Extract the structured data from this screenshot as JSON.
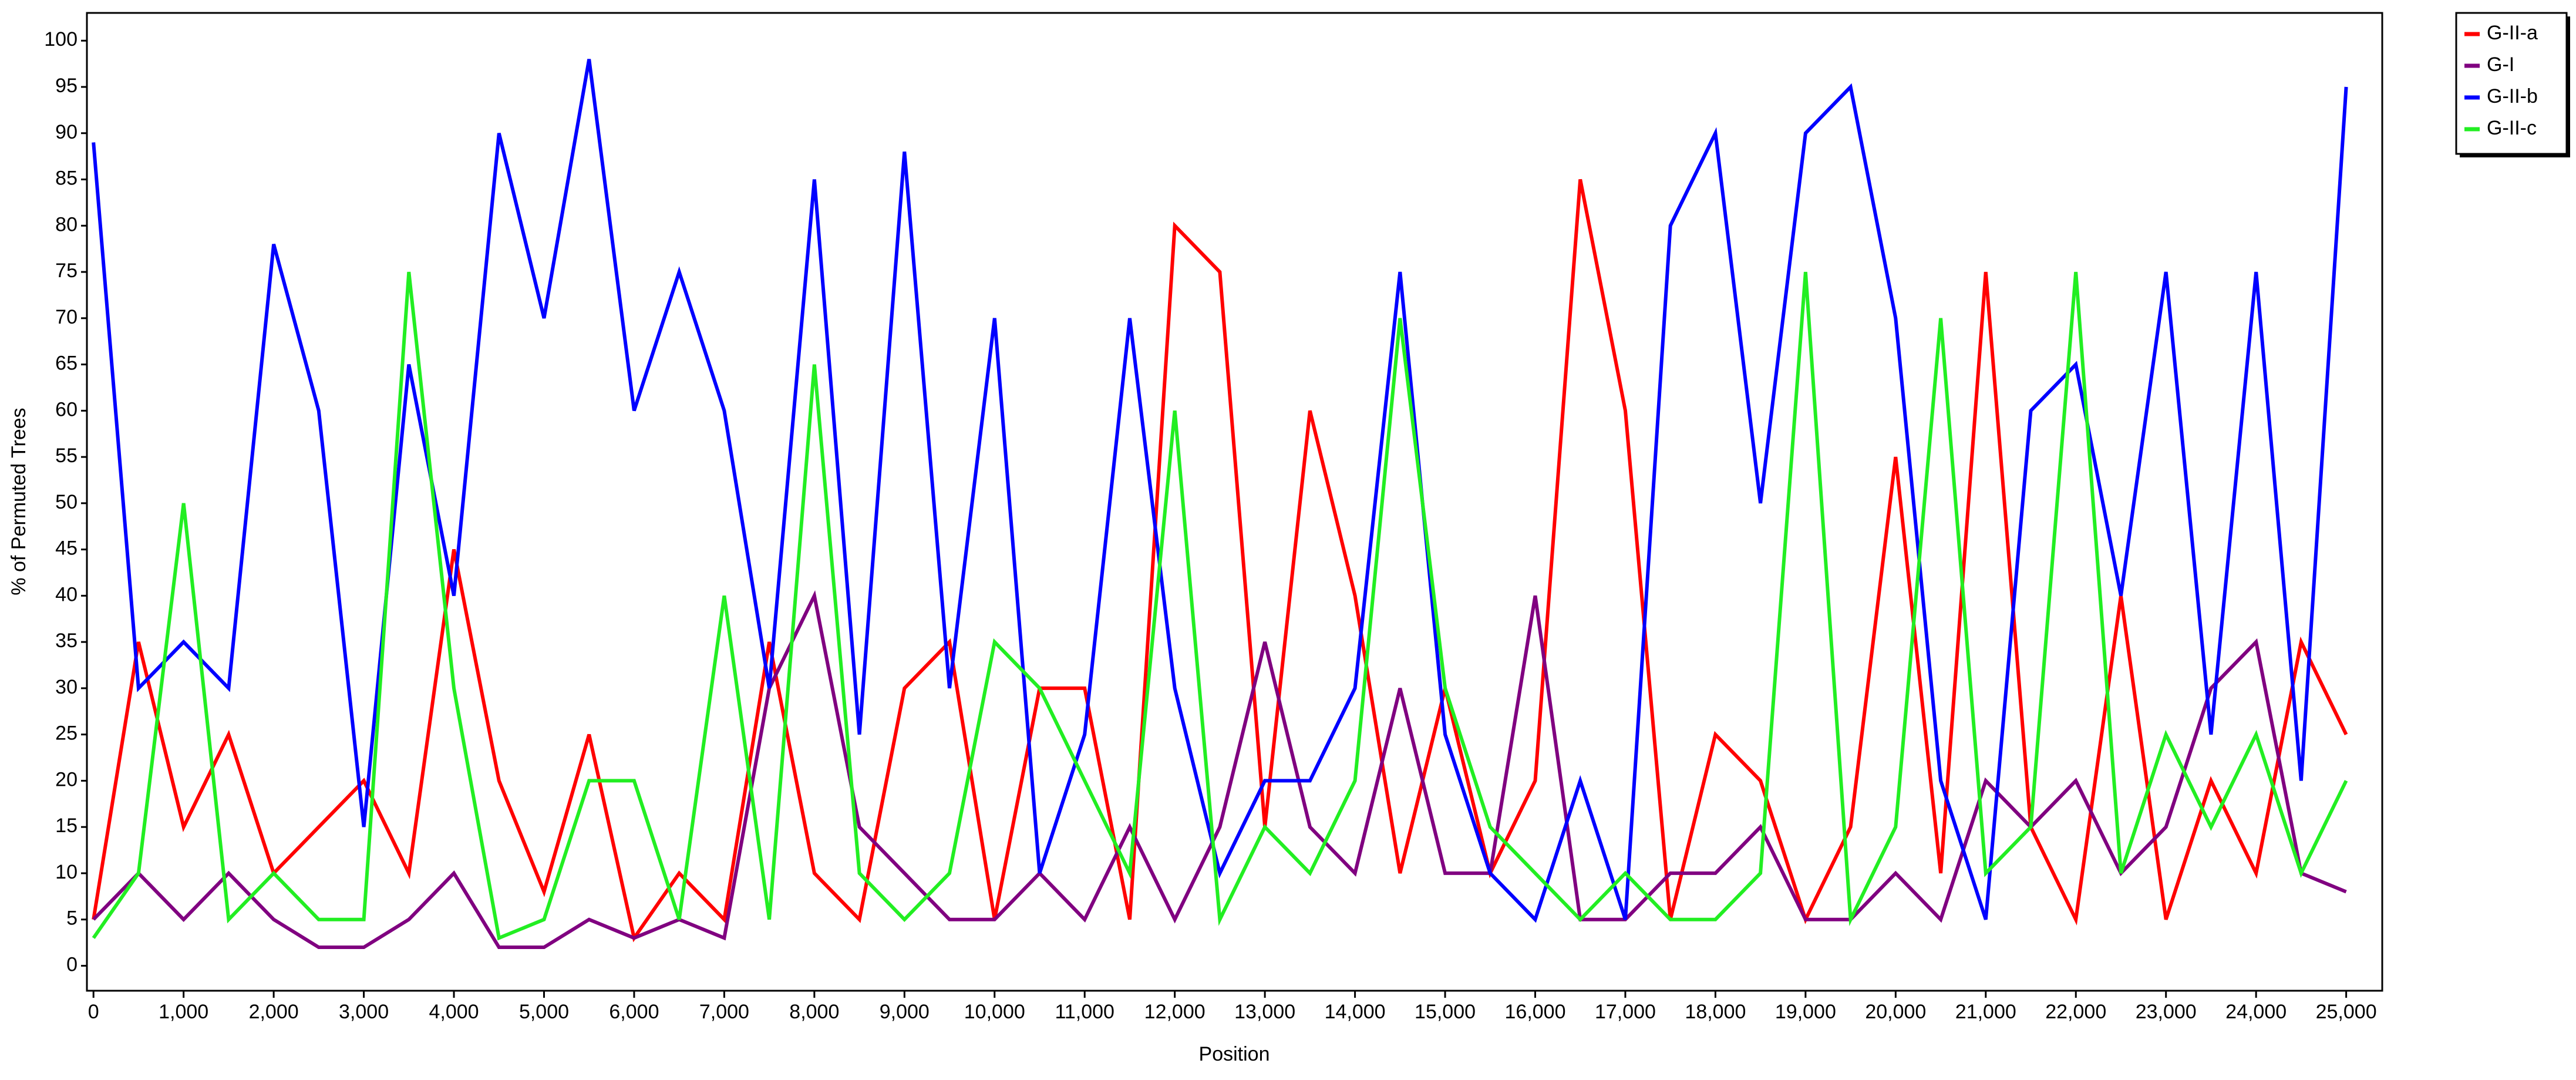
{
  "chart_data": {
    "type": "line",
    "xlabel": "Position",
    "ylabel": "% of Permuted Trees",
    "x": [
      0,
      500,
      1000,
      1500,
      2000,
      2500,
      3000,
      3500,
      4000,
      4500,
      5000,
      5500,
      6000,
      6500,
      7000,
      7500,
      8000,
      8500,
      9000,
      9500,
      10000,
      10500,
      11000,
      11500,
      12000,
      12500,
      13000,
      13500,
      14000,
      14500,
      15000,
      15500,
      16000,
      16500,
      17000,
      17500,
      18000,
      18500,
      19000,
      19500,
      20000,
      20500,
      21000,
      21500,
      22000,
      22500,
      23000,
      23500,
      24000,
      24500,
      25000
    ],
    "series": [
      {
        "name": "G-II-a",
        "color": "#ff0000",
        "values": [
          5,
          35,
          15,
          25,
          10,
          15,
          20,
          10,
          45,
          20,
          8,
          25,
          3,
          10,
          5,
          35,
          10,
          5,
          30,
          35,
          5,
          30,
          30,
          5,
          80,
          75,
          15,
          60,
          40,
          10,
          30,
          10,
          20,
          85,
          60,
          5,
          25,
          20,
          5,
          15,
          55,
          10,
          75,
          15,
          5,
          40,
          5,
          20,
          10,
          35,
          25
        ]
      },
      {
        "name": "G-I",
        "color": "#800080",
        "values": [
          5,
          10,
          5,
          10,
          5,
          2,
          2,
          5,
          10,
          2,
          2,
          5,
          3,
          5,
          3,
          30,
          40,
          15,
          10,
          5,
          5,
          10,
          5,
          15,
          5,
          15,
          35,
          15,
          10,
          30,
          10,
          10,
          40,
          5,
          5,
          10,
          10,
          15,
          5,
          5,
          10,
          5,
          20,
          15,
          20,
          10,
          15,
          30,
          35,
          10,
          8
        ]
      },
      {
        "name": "G-II-b",
        "color": "#0000ff",
        "values": [
          89,
          30,
          35,
          30,
          78,
          60,
          15,
          65,
          40,
          90,
          70,
          98,
          60,
          75,
          60,
          30,
          85,
          25,
          88,
          30,
          70,
          10,
          25,
          70,
          30,
          10,
          20,
          20,
          30,
          75,
          25,
          10,
          5,
          20,
          5,
          80,
          90,
          50,
          90,
          95,
          70,
          20,
          5,
          60,
          65,
          40,
          75,
          25,
          75,
          20,
          95
        ]
      },
      {
        "name": "G-II-c",
        "color": "#22ee22",
        "values": [
          3,
          10,
          50,
          5,
          10,
          5,
          5,
          75,
          30,
          3,
          5,
          20,
          20,
          5,
          40,
          5,
          65,
          10,
          5,
          10,
          35,
          30,
          20,
          10,
          60,
          5,
          15,
          10,
          20,
          70,
          30,
          15,
          10,
          5,
          10,
          5,
          5,
          10,
          75,
          5,
          15,
          70,
          10,
          15,
          75,
          10,
          25,
          15,
          25,
          10,
          20
        ]
      }
    ],
    "xlim": [
      -73,
      25400
    ],
    "ylim": [
      -2.7,
      103
    ],
    "xticks": [
      0,
      {
        "value": 1000,
        "label": "1,000"
      },
      {
        "value": 2000,
        "label": "2,000"
      },
      {
        "value": 3000,
        "label": "3,000"
      },
      {
        "value": 4000,
        "label": "4,000"
      },
      {
        "value": 5000,
        "label": "5,000"
      },
      {
        "value": 6000,
        "label": "6,000"
      },
      {
        "value": 7000,
        "label": "7,000"
      },
      {
        "value": 8000,
        "label": "8,000"
      },
      {
        "value": 9000,
        "label": "9,000"
      },
      {
        "value": 10000,
        "label": "10,000"
      },
      {
        "value": 11000,
        "label": "11,000"
      },
      {
        "value": 12000,
        "label": "12,000"
      },
      {
        "value": 13000,
        "label": "13,000"
      },
      {
        "value": 14000,
        "label": "14,000"
      },
      {
        "value": 15000,
        "label": "15,000"
      },
      {
        "value": 16000,
        "label": "16,000"
      },
      {
        "value": 17000,
        "label": "17,000"
      },
      {
        "value": 18000,
        "label": "18,000"
      },
      {
        "value": 19000,
        "label": "19,000"
      },
      {
        "value": 20000,
        "label": "20,000"
      },
      {
        "value": 21000,
        "label": "21,000"
      },
      {
        "value": 22000,
        "label": "22,000"
      },
      {
        "value": 23000,
        "label": "23,000"
      },
      {
        "value": 24000,
        "label": "24,000"
      },
      {
        "value": 25000,
        "label": "25,000"
      }
    ],
    "yticks": [
      0,
      5,
      10,
      15,
      20,
      25,
      30,
      35,
      40,
      45,
      50,
      55,
      60,
      65,
      70,
      75,
      80,
      85,
      90,
      95,
      100
    ],
    "grid": false,
    "legend": "outside-top-right"
  }
}
